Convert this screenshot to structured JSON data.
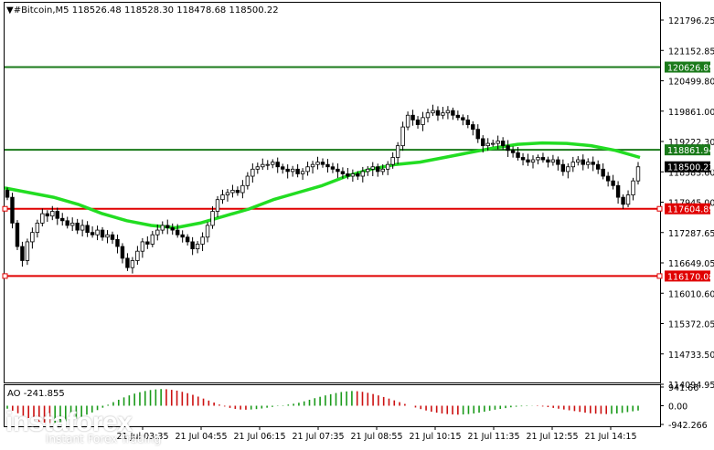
{
  "header": {
    "symbol_line": "▼#Bitcoin,M5  118526.48 118528.30 118478.68 118500.22"
  },
  "chart_data": {
    "type": "candlestick",
    "price_axis": {
      "range": [
        113900,
        122000
      ],
      "tick_labels": [
        "121796.25",
        "121152.85",
        "120499.80",
        "119861.00",
        "119222.30",
        "118583.60",
        "117945.00",
        "117287.65",
        "116649.05",
        "116010.60",
        "115372.05",
        "114733.50",
        "114094.95"
      ]
    },
    "time_axis": {
      "tick_labels": [
        "21 Jul 03:35",
        "21 Jul 04:55",
        "21 Jul 06:15",
        "21 Jul 07:35",
        "21 Jul 08:55",
        "21 Jul 10:15",
        "21 Jul 11:35",
        "21 Jul 12:55",
        "21 Jul 14:15"
      ]
    },
    "levels": [
      {
        "label": "120626.89",
        "value": 120626.89,
        "color": "#1a7a1a"
      },
      {
        "label": "118861.94",
        "value": 118861.94,
        "color": "#1a7a1a"
      },
      {
        "label": "117604.89",
        "value": 117604.89,
        "color": "#e00000"
      },
      {
        "label": "116170.08",
        "value": 116170.08,
        "color": "#e00000"
      }
    ],
    "current_price": {
      "label": "118500.22",
      "value": 118500.22
    },
    "candles_close": [
      117850,
      117300,
      116800,
      116500,
      116900,
      117100,
      117300,
      117500,
      117450,
      117550,
      117400,
      117350,
      117250,
      117300,
      117150,
      117250,
      117100,
      117050,
      117150,
      117000,
      117050,
      116950,
      116800,
      116550,
      116350,
      116500,
      116700,
      116900,
      116850,
      117050,
      117150,
      117250,
      117200,
      117150,
      117050,
      117000,
      116900,
      116750,
      116850,
      117000,
      117250,
      117550,
      117800,
      117900,
      117950,
      118000,
      117950,
      118100,
      118300,
      118450,
      118500,
      118550,
      118550,
      118600,
      118500,
      118450,
      118400,
      118450,
      118350,
      118400,
      118500,
      118550,
      118600,
      118550,
      118500,
      118450,
      118400,
      118350,
      118300,
      118350,
      118300,
      118400,
      118450,
      118500,
      118400,
      118450,
      118550,
      118700,
      118950,
      119350,
      119600,
      119500,
      119400,
      119550,
      119650,
      119700,
      119600,
      119650,
      119700,
      119600,
      119550,
      119500,
      119400,
      119300,
      119100,
      118950,
      119000,
      119000,
      119050,
      118950,
      118850,
      118800,
      118700,
      118650,
      118600,
      118650,
      118700,
      118650,
      118600,
      118650,
      118550,
      118400,
      118500,
      118600,
      118650,
      118550,
      118600,
      118550,
      118450,
      118300,
      118200,
      118100,
      117850,
      117700,
      117900,
      118200,
      118500
    ],
    "moving_average": [
      118050,
      117950,
      117850,
      117700,
      117500,
      117350,
      117250,
      117200,
      117300,
      117450,
      117600,
      117800,
      117950,
      118100,
      118300,
      118450,
      118550,
      118600,
      118700,
      118800,
      118900,
      118980,
      119010,
      119000,
      118950,
      118850,
      118700
    ],
    "ao": {
      "label": "AO -241.855",
      "tick_labels": [
        "941.66",
        "0.00",
        "-942.266"
      ],
      "range": [
        -942.266,
        941.66
      ],
      "values": [
        -150,
        -250,
        -380,
        -500,
        -620,
        -720,
        -800,
        -850,
        -870,
        -860,
        -830,
        -780,
        -720,
        -650,
        -560,
        -450,
        -340,
        -220,
        -100,
        50,
        180,
        300,
        420,
        520,
        610,
        680,
        740,
        790,
        820,
        840,
        830,
        800,
        760,
        700,
        630,
        550,
        460,
        360,
        260,
        160,
        60,
        -40,
        -110,
        -160,
        -190,
        -200,
        -190,
        -170,
        -140,
        -100,
        -60,
        -20,
        20,
        60,
        100,
        150,
        220,
        300,
        380,
        450,
        520,
        580,
        640,
        690,
        720,
        740,
        730,
        700,
        650,
        590,
        520,
        440,
        360,
        270,
        180,
        90,
        0,
        -90,
        -170,
        -240,
        -300,
        -350,
        -390,
        -420,
        -440,
        -450,
        -440,
        -420,
        -390,
        -350,
        -300,
        -250,
        -200,
        -160,
        -120,
        -80,
        -50,
        -30,
        -20,
        -10,
        -20,
        -40,
        -70,
        -110,
        -150,
        -190,
        -230,
        -270,
        -310,
        -350,
        -380,
        -400,
        -410,
        -420,
        -410,
        -390,
        -360,
        -320,
        -280,
        -242
      ]
    }
  },
  "watermark": {
    "logo": "instaforex",
    "tagline": "Instant Forex Trading"
  }
}
